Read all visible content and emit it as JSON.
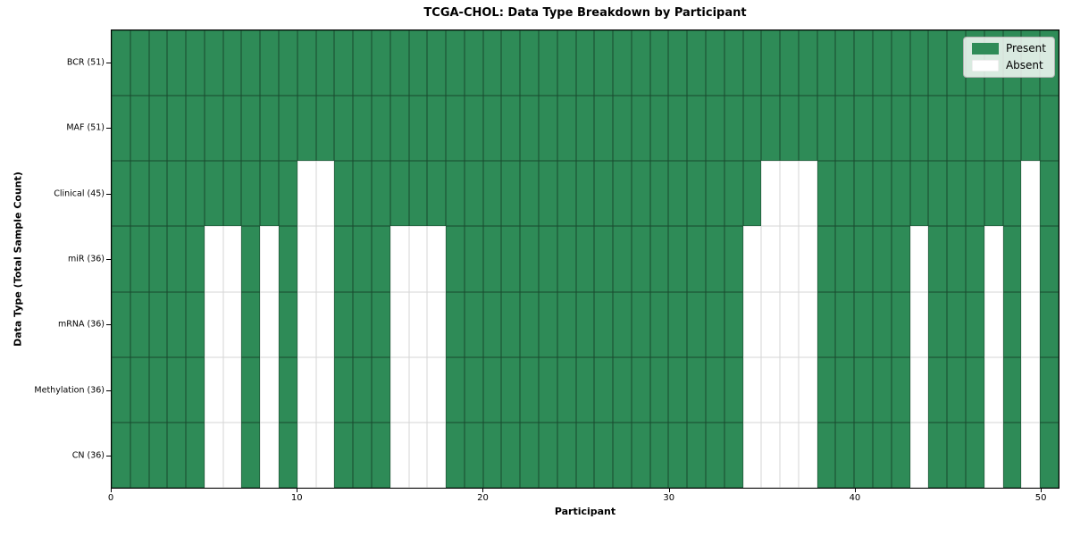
{
  "chart_data": {
    "type": "heatmap",
    "title": "TCGA-CHOL: Data Type Breakdown by Participant",
    "xlabel": "Participant",
    "ylabel": "Data Type (Total Sample Count)",
    "n_participants": 51,
    "xlim": [
      0,
      51
    ],
    "x_ticks": [
      0,
      10,
      20,
      30,
      40,
      50
    ],
    "legend_position": "upper right",
    "grid": false,
    "colors": {
      "present": "#2e8b57",
      "absent": "#ffffff",
      "cell_edge": "rgba(0,0,0,0.48)",
      "spine": "#000000"
    },
    "legend": [
      {
        "label": "Present",
        "color": "#2e8b57"
      },
      {
        "label": "Absent",
        "color": "#ffffff"
      }
    ],
    "rows": [
      {
        "label": "BCR (51)",
        "data_type": "BCR",
        "present_count": 51,
        "absent_participants": []
      },
      {
        "label": "MAF (51)",
        "data_type": "MAF",
        "present_count": 51,
        "absent_participants": []
      },
      {
        "label": "Clinical (45)",
        "data_type": "Clinical",
        "present_count": 45,
        "absent_participants": [
          10,
          11,
          35,
          36,
          37,
          49
        ]
      },
      {
        "label": "miR (36)",
        "data_type": "miR",
        "present_count": 36,
        "absent_participants": [
          5,
          6,
          8,
          10,
          11,
          15,
          16,
          17,
          34,
          35,
          36,
          37,
          43,
          47,
          49
        ]
      },
      {
        "label": "mRNA (36)",
        "data_type": "mRNA",
        "present_count": 36,
        "absent_participants": [
          5,
          6,
          8,
          10,
          11,
          15,
          16,
          17,
          34,
          35,
          36,
          37,
          43,
          47,
          49
        ]
      },
      {
        "label": "Methylation (36)",
        "data_type": "Methylation",
        "present_count": 36,
        "absent_participants": [
          5,
          6,
          8,
          10,
          11,
          15,
          16,
          17,
          34,
          35,
          36,
          37,
          43,
          47,
          49
        ]
      },
      {
        "label": "CN (36)",
        "data_type": "CN",
        "present_count": 36,
        "absent_participants": [
          5,
          6,
          8,
          10,
          11,
          15,
          16,
          17,
          34,
          35,
          36,
          37,
          43,
          47,
          49
        ]
      }
    ]
  }
}
